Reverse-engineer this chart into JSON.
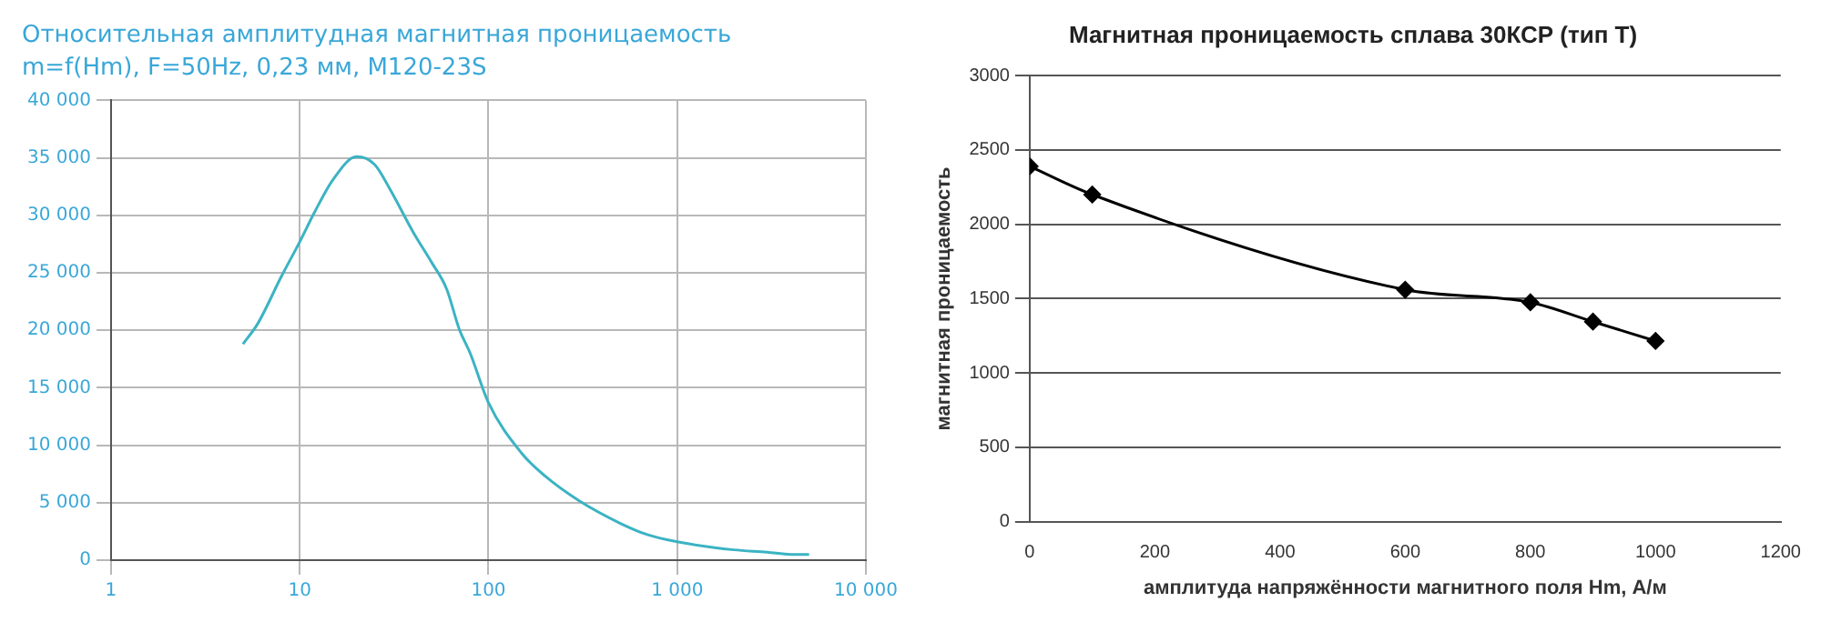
{
  "chart_data": [
    {
      "type": "line",
      "title": "Относительная амплитудная магнитная проницаемость",
      "subtitle": "m=f(Hm), F=50Hz, 0,23 мм, M120-23S",
      "log": "x",
      "grid": true,
      "marker": "none",
      "legend": false,
      "x": [
        5,
        6,
        8,
        10,
        12,
        15,
        20,
        25,
        30,
        40,
        50,
        60,
        70,
        80,
        100,
        150,
        200,
        300,
        500,
        700,
        1000,
        2000,
        3000,
        4000,
        5000
      ],
      "series": [
        {
          "color": "#3bb3c3",
          "values": [
            18800,
            20600,
            24700,
            27700,
            30300,
            33100,
            35100,
            34400,
            32300,
            28500,
            25900,
            23600,
            20100,
            18000,
            13700,
            9300,
            7300,
            5200,
            3200,
            2200,
            1600,
            900,
            700,
            500,
            500
          ]
        }
      ],
      "xlim": [
        1,
        10000
      ],
      "xticks": [
        1,
        10,
        100,
        {
          "value": 1000,
          "label": "1 000"
        },
        {
          "value": 10000,
          "label": "10 000"
        }
      ],
      "ylim": [
        0,
        40000
      ],
      "yticks": [
        0,
        {
          "value": 5000,
          "label": "5 000"
        },
        {
          "value": 10000,
          "label": "10 000"
        },
        {
          "value": 15000,
          "label": "15 000"
        },
        {
          "value": 20000,
          "label": "20 000"
        },
        {
          "value": 25000,
          "label": "25 000"
        },
        {
          "value": 30000,
          "label": "30 000"
        },
        {
          "value": 35000,
          "label": "35 000"
        },
        {
          "value": 40000,
          "label": "40 000"
        }
      ]
    },
    {
      "type": "line",
      "title": "Магнитная проницаемость сплава 30КСР (тип Т)",
      "xlabel": "амплитуда напряжённости магнитного поля Hm, А/м",
      "ylabel": "магнитная проницаемость",
      "grid": "y",
      "marker": "diamond",
      "legend": false,
      "x": [
        0,
        100,
        600,
        800,
        900,
        1000
      ],
      "series": [
        {
          "color": "#000000",
          "values": [
            2390,
            2200,
            1560,
            1475,
            1345,
            1215
          ]
        }
      ],
      "xlim": [
        0,
        1200
      ],
      "xticks": [
        0,
        200,
        400,
        600,
        800,
        1000,
        1200
      ],
      "ylim": [
        0,
        3000
      ],
      "yticks": [
        0,
        500,
        1000,
        1500,
        2000,
        2500,
        3000
      ]
    }
  ]
}
